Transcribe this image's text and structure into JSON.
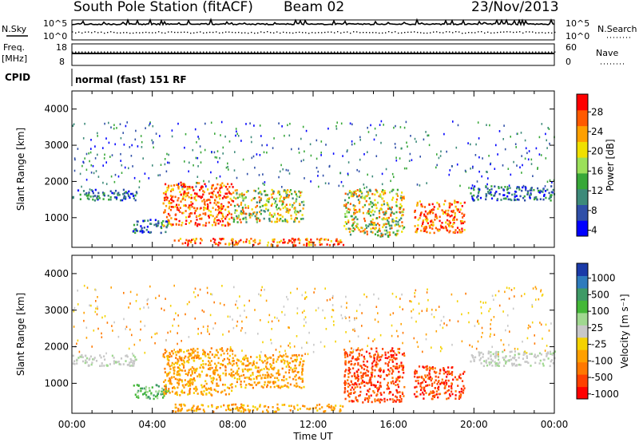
{
  "header": {
    "station": "South Pole Station (fitACF)",
    "beam": "Beam 02",
    "date": "23/Nov/2013"
  },
  "strip": {
    "nsky_label": "N.Sky",
    "nsearch_label": "N.Search",
    "freq_label": "Freq.",
    "freq_unit": "[MHz]",
    "nave_label": "Nave",
    "cpid_label": "CPID",
    "cpid_value": "normal (fast) 151 RF",
    "noise_ticks_left": [
      "10^5",
      "10^0"
    ],
    "noise_ticks_right": [
      "10^5",
      "10^0"
    ],
    "freq_ticks": [
      "18",
      "8"
    ],
    "nave_ticks": [
      "60",
      "0"
    ]
  },
  "colors": {
    "power_scale": [
      "#0000ff",
      "#2f4fa8",
      "#3d8a7a",
      "#38a838",
      "#9be05a",
      "#f0e000",
      "#ffa000",
      "#ff5a00",
      "#ff0000"
    ],
    "velocity_scale": [
      "#1a3aa8",
      "#2e7bbd",
      "#3e9a66",
      "#44b838",
      "#a0d890",
      "#c8c8c8",
      "#f5d200",
      "#ffa000",
      "#ff7800",
      "#ff4000",
      "#ff0000"
    ]
  },
  "chart_data": [
    {
      "type": "heatmap",
      "name": "power-panel",
      "ylabel": "Slant Range [km]",
      "xlabel": "Time UT",
      "x_ticks": [
        "00:00",
        "04:00",
        "08:00",
        "12:00",
        "16:00",
        "20:00",
        "00:00"
      ],
      "y_ticks": [
        "1000",
        "2000",
        "3000",
        "4000"
      ],
      "xlim": [
        0,
        24
      ],
      "ylim": [
        180,
        4500
      ],
      "colorbar": {
        "label": "Power [dB]",
        "ticks": [
          "28",
          "24",
          "20",
          "16",
          "12",
          "8",
          "4"
        ],
        "range": [
          0,
          30
        ]
      },
      "bands": [
        {
          "t0": 0.0,
          "t1": 3.2,
          "r0": 1500,
          "r1": 1800,
          "level": "low"
        },
        {
          "t0": 3.0,
          "t1": 4.8,
          "r0": 600,
          "r1": 1000,
          "level": "low"
        },
        {
          "t0": 4.5,
          "t1": 8.0,
          "r0": 800,
          "r1": 2000,
          "level": "high"
        },
        {
          "t0": 8.0,
          "t1": 11.5,
          "r0": 900,
          "r1": 1800,
          "level": "mid"
        },
        {
          "t0": 5.0,
          "t1": 13.5,
          "r0": 250,
          "r1": 450,
          "level": "high"
        },
        {
          "t0": 13.5,
          "t1": 16.5,
          "r0": 500,
          "r1": 1800,
          "level": "mid"
        },
        {
          "t0": 17.0,
          "t1": 19.5,
          "r0": 600,
          "r1": 1500,
          "level": "high"
        },
        {
          "t0": 19.8,
          "t1": 24.0,
          "r0": 1500,
          "r1": 1900,
          "level": "low"
        }
      ]
    },
    {
      "type": "heatmap",
      "name": "velocity-panel",
      "ylabel": "Slant Range [km]",
      "xlabel": "Time UT",
      "x_ticks": [
        "00:00",
        "04:00",
        "08:00",
        "12:00",
        "16:00",
        "20:00",
        "00:00"
      ],
      "y_ticks": [
        "1000",
        "2000",
        "3000",
        "4000"
      ],
      "xlim": [
        0,
        24
      ],
      "ylim": [
        180,
        4500
      ],
      "colorbar": {
        "label": "Velocity [m s⁻¹]",
        "ticks": [
          "1000",
          "500",
          "100",
          "25",
          "-25",
          "-100",
          "-500",
          "-1000"
        ],
        "range": [
          -1000,
          1000
        ]
      },
      "bands": [
        {
          "t0": 0.0,
          "t1": 3.2,
          "r0": 1500,
          "r1": 1800,
          "level": "grey"
        },
        {
          "t0": 3.0,
          "t1": 4.8,
          "r0": 600,
          "r1": 1000,
          "level": "green"
        },
        {
          "t0": 4.5,
          "t1": 8.0,
          "r0": 700,
          "r1": 2000,
          "level": "orange"
        },
        {
          "t0": 8.0,
          "t1": 11.5,
          "r0": 900,
          "r1": 1800,
          "level": "orange"
        },
        {
          "t0": 5.0,
          "t1": 13.5,
          "r0": 250,
          "r1": 450,
          "level": "orange"
        },
        {
          "t0": 13.5,
          "t1": 16.5,
          "r0": 500,
          "r1": 2000,
          "level": "red"
        },
        {
          "t0": 17.0,
          "t1": 19.5,
          "r0": 600,
          "r1": 1500,
          "level": "red"
        },
        {
          "t0": 19.8,
          "t1": 24.0,
          "r0": 1500,
          "r1": 1900,
          "level": "grey"
        }
      ]
    }
  ]
}
